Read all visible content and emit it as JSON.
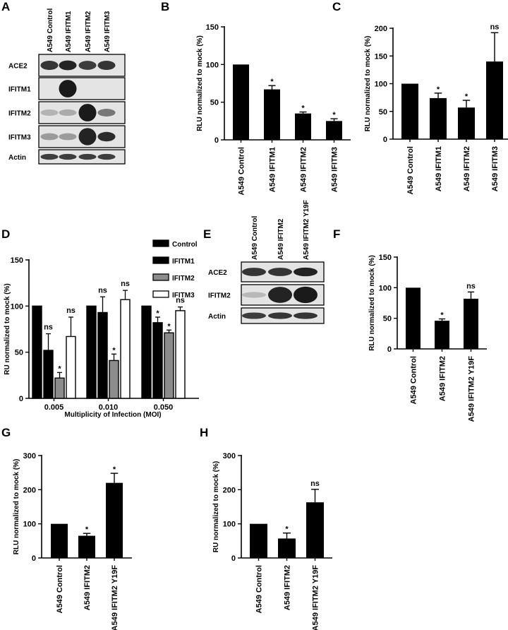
{
  "figure": {
    "panels": [
      "A",
      "B",
      "C",
      "D",
      "E",
      "F",
      "G",
      "H"
    ]
  },
  "colors": {
    "black": "#000000",
    "gray": "#8c8c8c",
    "white": "#ffffff",
    "blot_bg": "#e4e4e4",
    "band": "#1a1a1a"
  },
  "blot_A": {
    "lanes": [
      "A549 Control",
      "A549 IFITM1",
      "A549 IFITM2",
      "A549 IFITM3"
    ],
    "rows": [
      {
        "label": "ACE2",
        "intensity": [
          0.85,
          0.95,
          0.8,
          0.85
        ]
      },
      {
        "label": "IFITM1",
        "intensity": [
          0.0,
          1.0,
          0.0,
          0.0
        ]
      },
      {
        "label": "IFITM2",
        "intensity": [
          0.1,
          0.15,
          1.0,
          0.45
        ]
      },
      {
        "label": "IFITM3",
        "intensity": [
          0.25,
          0.25,
          0.95,
          0.9
        ]
      },
      {
        "label": "Actin",
        "intensity": [
          0.8,
          0.8,
          0.8,
          0.8
        ]
      }
    ]
  },
  "blot_E": {
    "lanes": [
      "A549 Control",
      "A549 IFITM2",
      "A549 IFITM2 Y19F"
    ],
    "rows": [
      {
        "label": "ACE2",
        "intensity": [
          0.85,
          0.85,
          0.95
        ]
      },
      {
        "label": "IFITM2",
        "intensity": [
          0.08,
          0.95,
          1.0
        ]
      },
      {
        "label": "Actin",
        "intensity": [
          0.8,
          0.85,
          0.85
        ]
      }
    ]
  },
  "chart_data": [
    {
      "panel": "B",
      "type": "bar",
      "categories": [
        "A549 Control",
        "A549 IFITM1",
        "A549 IFITM2",
        "A549 IFITM3"
      ],
      "values": [
        100,
        67,
        35,
        25
      ],
      "errors": [
        0,
        5,
        2,
        3
      ],
      "annotations": [
        "",
        "*",
        "*",
        "*"
      ],
      "ylabel": "RLU normalized to mock (%)",
      "yticks": [
        0,
        50,
        100,
        150
      ],
      "ylim": [
        0,
        150
      ]
    },
    {
      "panel": "C",
      "type": "bar",
      "categories": [
        "A549 Control",
        "A549 IFITM1",
        "A549 IFITM2",
        "A549 IFITM3"
      ],
      "values": [
        100,
        74,
        57,
        140
      ],
      "errors": [
        0,
        9,
        13,
        52
      ],
      "annotations": [
        "",
        "*",
        "*",
        "ns"
      ],
      "ylabel": "RLU normalized to mock (%)",
      "yticks": [
        0,
        50,
        100,
        150,
        200
      ],
      "ylim": [
        0,
        200
      ]
    },
    {
      "panel": "D",
      "type": "bar",
      "categories": [
        "0.005",
        "0.010",
        "0.050"
      ],
      "series": [
        {
          "name": "Control",
          "color": "#000000",
          "values": [
            100,
            100,
            100
          ],
          "errors": [
            0,
            0,
            0
          ],
          "annotations": [
            "",
            "",
            ""
          ]
        },
        {
          "name": "IFITM1",
          "color": "#000000",
          "values": [
            52,
            93,
            82
          ],
          "errors": [
            18,
            17,
            6
          ],
          "annotations": [
            "ns",
            "ns",
            "*"
          ]
        },
        {
          "name": "IFITM2",
          "color": "#8c8c8c",
          "values": [
            22,
            41,
            71
          ],
          "errors": [
            6,
            7,
            3
          ],
          "annotations": [
            "*",
            "*",
            "*"
          ]
        },
        {
          "name": "IFITM3",
          "color": "#ffffff",
          "values": [
            67,
            107,
            95
          ],
          "errors": [
            21,
            10,
            4
          ],
          "annotations": [
            "ns",
            "ns",
            "ns"
          ]
        }
      ],
      "xlabel": "Multiplicity of Infection (MOI)",
      "ylabel": "RU normalized to mock (%)",
      "yticks": [
        0,
        50,
        100,
        150
      ],
      "ylim": [
        0,
        150
      ],
      "legend": "top-right"
    },
    {
      "panel": "F",
      "type": "bar",
      "categories": [
        "A549 Control",
        "A549 IFITM2",
        "A549 IFITM2 Y19F"
      ],
      "values": [
        100,
        46,
        82
      ],
      "errors": [
        0,
        3,
        11
      ],
      "annotations": [
        "",
        "*",
        "ns"
      ],
      "ylabel": "RLU normalized to mock (%)",
      "yticks": [
        0,
        50,
        100,
        150
      ],
      "ylim": [
        0,
        150
      ]
    },
    {
      "panel": "G",
      "type": "bar",
      "categories": [
        "A549 Control",
        "A549 IFITM2",
        "A549 IFITM2 Y19F"
      ],
      "values": [
        100,
        65,
        220
      ],
      "errors": [
        0,
        7,
        28
      ],
      "annotations": [
        "",
        "*",
        "*"
      ],
      "ylabel": "RLU normalized to mock (%)",
      "yticks": [
        0,
        100,
        200,
        300
      ],
      "ylim": [
        0,
        300
      ]
    },
    {
      "panel": "H",
      "type": "bar",
      "categories": [
        "A549 Control",
        "A549 IFITM2",
        "A549 IFITM2 Y19F"
      ],
      "values": [
        100,
        57,
        163
      ],
      "errors": [
        0,
        16,
        38
      ],
      "annotations": [
        "",
        "*",
        "ns"
      ],
      "ylabel": "RU normalized to mock (%)",
      "yticks": [
        0,
        100,
        200,
        300
      ],
      "ylim": [
        0,
        300
      ]
    }
  ]
}
